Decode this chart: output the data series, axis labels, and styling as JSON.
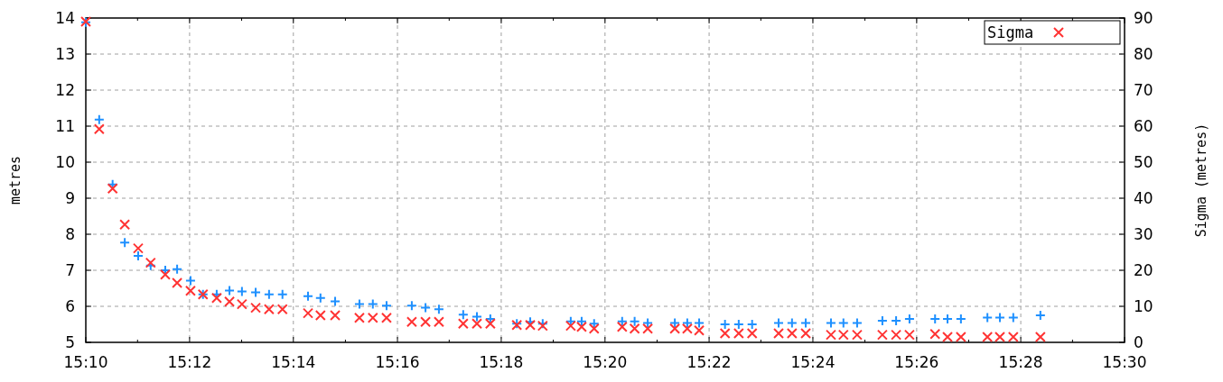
{
  "chart_data": {
    "type": "scatter",
    "ylabel": "metres",
    "y2label": "Sigma (metres)",
    "x": [
      15.1667,
      15.171,
      15.1753,
      15.1792,
      15.1835,
      15.1875,
      15.1922,
      15.196,
      15.2003,
      15.2043,
      15.2087,
      15.2128,
      15.2168,
      15.2212,
      15.2255,
      15.2298,
      15.238,
      15.242,
      15.2467,
      15.2545,
      15.2588,
      15.2632,
      15.2713,
      15.2757,
      15.28,
      15.2878,
      15.2922,
      15.2965,
      15.305,
      15.3093,
      15.3133,
      15.3223,
      15.3258,
      15.3298,
      15.3388,
      15.3428,
      15.347,
      15.3557,
      15.3597,
      15.3635,
      15.3718,
      15.3762,
      15.3805,
      15.389,
      15.3933,
      15.3977,
      15.4058,
      15.4098,
      15.4142,
      15.4223,
      15.4267,
      15.431,
      15.4392,
      15.4432,
      15.4475,
      15.456,
      15.46,
      15.4643,
      15.473
    ],
    "series": [
      {
        "color": "#1e90ff",
        "marker": "plus",
        "values": [
          13.88,
          11.18,
          9.38,
          7.77,
          7.4,
          7.13,
          7.0,
          7.03,
          6.71,
          6.33,
          6.33,
          6.44,
          6.41,
          6.39,
          6.33,
          6.33,
          6.28,
          6.23,
          6.14,
          6.06,
          6.06,
          6.02,
          6.02,
          5.96,
          5.92,
          5.77,
          5.71,
          5.65,
          5.52,
          5.57,
          5.52,
          5.58,
          5.58,
          5.52,
          5.58,
          5.58,
          5.54,
          5.54,
          5.54,
          5.54,
          5.5,
          5.5,
          5.5,
          5.54,
          5.54,
          5.54,
          5.54,
          5.54,
          5.54,
          5.6,
          5.6,
          5.65,
          5.65,
          5.65,
          5.65,
          5.69,
          5.69,
          5.69,
          5.75
        ]
      },
      {
        "name": "Sigma",
        "color": "#ff3333",
        "marker": "cross",
        "axis": "y2",
        "values": [
          89,
          59.2,
          42.7,
          32.7,
          26.1,
          22.1,
          18.8,
          16.5,
          14.3,
          13.3,
          12.3,
          11.3,
          10.6,
          9.6,
          9.2,
          9.2,
          8.1,
          7.5,
          7.5,
          6.8,
          6.8,
          6.8,
          5.7,
          5.7,
          5.7,
          5.2,
          5.2,
          5.2,
          4.8,
          4.8,
          4.6,
          4.6,
          4.3,
          3.8,
          4.3,
          3.8,
          3.8,
          3.8,
          3.8,
          3.3,
          2.5,
          2.5,
          2.5,
          2.5,
          2.5,
          2.5,
          2.1,
          2.1,
          2.1,
          2.1,
          2.1,
          2.1,
          2.3,
          1.5,
          1.5,
          1.5,
          1.5,
          1.5,
          1.5
        ]
      }
    ],
    "xlim": [
      15.1667,
      15.5
    ],
    "xticks": [
      {
        "value": 15.1667,
        "label": "15:10"
      },
      {
        "value": 15.1833,
        "label": null
      },
      {
        "value": 15.2,
        "label": "15:12"
      },
      {
        "value": 15.2167,
        "label": null
      },
      {
        "value": 15.2333,
        "label": "15:14"
      },
      {
        "value": 15.25,
        "label": null
      },
      {
        "value": 15.2667,
        "label": "15:16"
      },
      {
        "value": 15.2833,
        "label": null
      },
      {
        "value": 15.3,
        "label": "15:18"
      },
      {
        "value": 15.3167,
        "label": null
      },
      {
        "value": 15.3333,
        "label": "15:20"
      },
      {
        "value": 15.35,
        "label": null
      },
      {
        "value": 15.3667,
        "label": "15:22"
      },
      {
        "value": 15.3833,
        "label": null
      },
      {
        "value": 15.4,
        "label": "15:24"
      },
      {
        "value": 15.4167,
        "label": null
      },
      {
        "value": 15.4333,
        "label": "15:26"
      },
      {
        "value": 15.45,
        "label": null
      },
      {
        "value": 15.4667,
        "label": "15:28"
      },
      {
        "value": 15.4833,
        "label": null
      },
      {
        "value": 15.5,
        "label": "15:30"
      }
    ],
    "ylim": [
      5,
      14
    ],
    "yticks": [
      5,
      6,
      7,
      8,
      9,
      10,
      11,
      12,
      13,
      14
    ],
    "y2lim": [
      0,
      90
    ],
    "y2ticks": [
      0,
      10,
      20,
      30,
      40,
      50,
      60,
      70,
      80,
      90
    ],
    "grid": true,
    "legend": "top right"
  }
}
